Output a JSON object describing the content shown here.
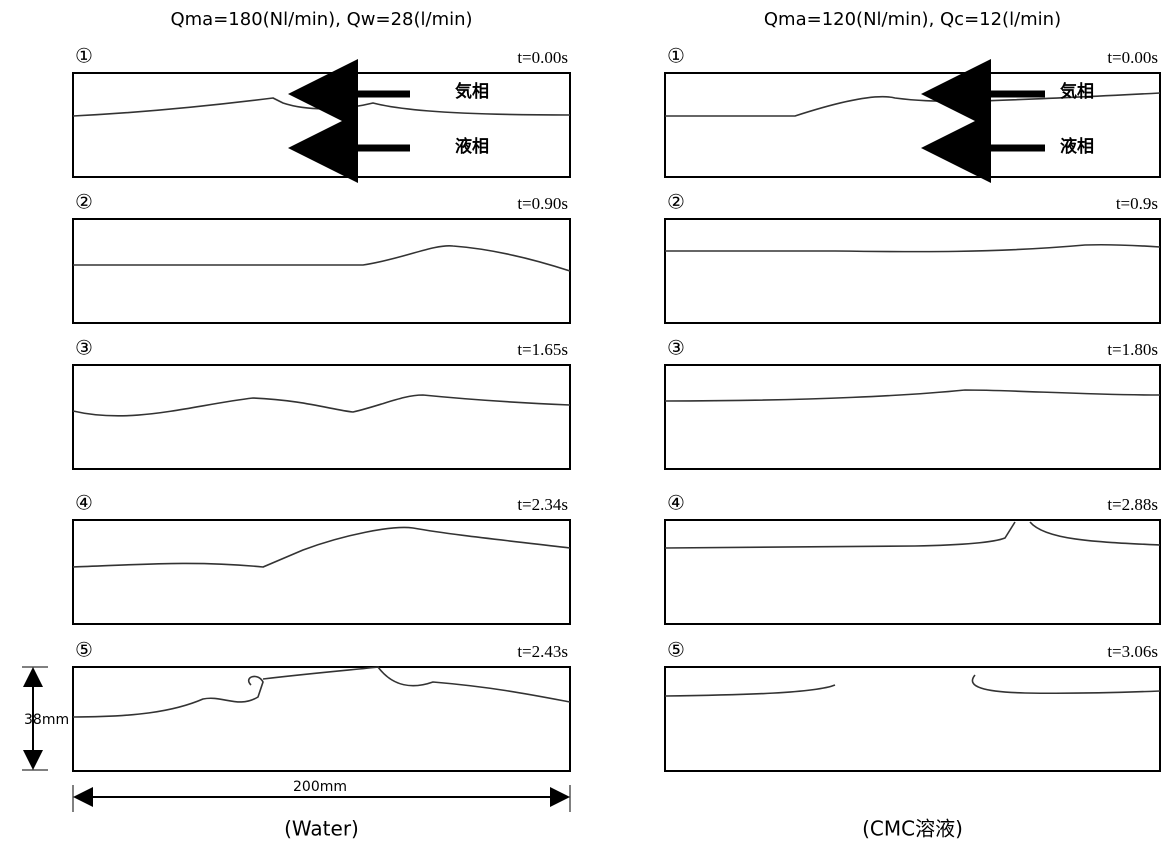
{
  "columns": [
    {
      "title": "Qma=180(Nl/min), Qw=28(l/min)",
      "caption": "(Water)",
      "frames": [
        {
          "label": "①",
          "time": "t=0.00s"
        },
        {
          "label": "②",
          "time": "t=0.90s"
        },
        {
          "label": "③",
          "time": "t=1.65s"
        },
        {
          "label": "④",
          "time": "t=2.34s"
        },
        {
          "label": "⑤",
          "time": "t=2.43s"
        }
      ],
      "gas_label": "気相",
      "liquid_label": "液相"
    },
    {
      "title": "Qma=120(Nl/min), Qc=12(l/min)",
      "caption": "(CMC溶液)",
      "frames": [
        {
          "label": "①",
          "time": "t=0.00s"
        },
        {
          "label": "②",
          "time": "t=0.9s"
        },
        {
          "label": "③",
          "time": "t=1.80s"
        },
        {
          "label": "④",
          "time": "t=2.88s"
        },
        {
          "label": "⑤",
          "time": "t=3.06s"
        }
      ],
      "gas_label": "気相",
      "liquid_label": "液相"
    }
  ],
  "dimensions": {
    "height": "38mm",
    "width": "200mm"
  }
}
